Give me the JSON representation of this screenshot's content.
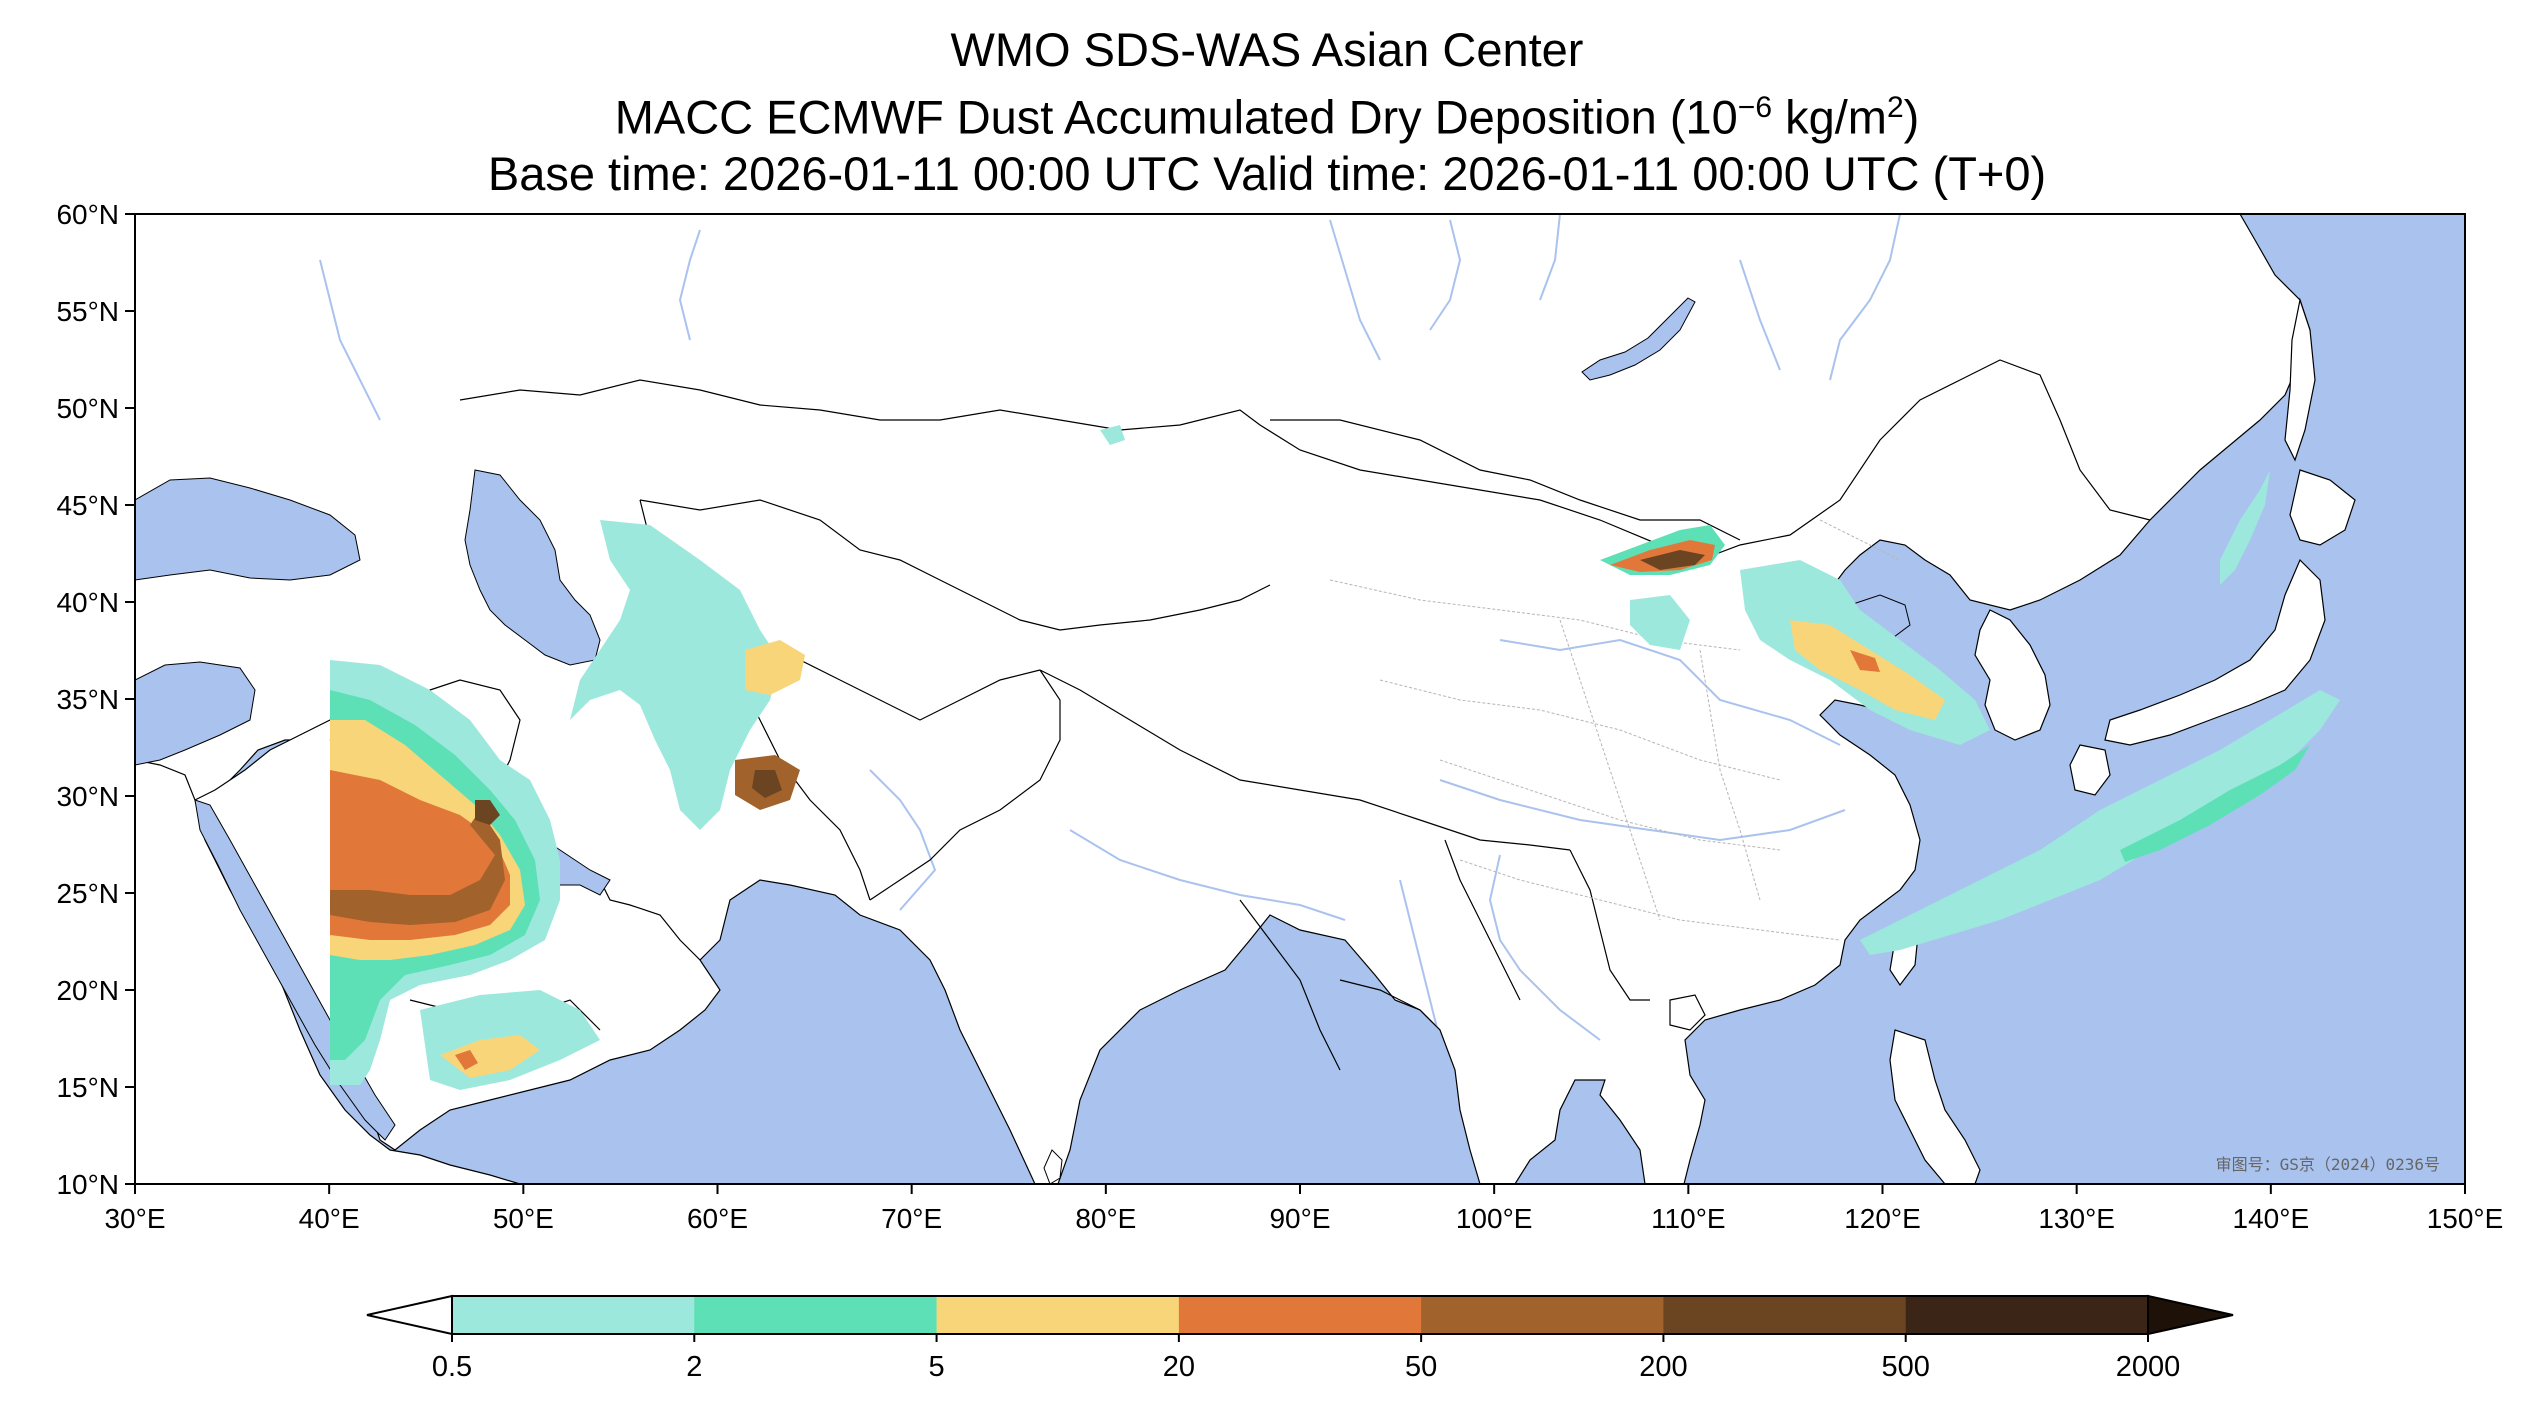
{
  "title": {
    "line1": "WMO SDS-WAS Asian Center",
    "line2_text": "MACC ECMWF Dust Accumulated Dry Deposition (10",
    "line2_exp": "−6",
    "line2_unit": " kg/m",
    "line2_unit_exp": "2",
    "line2_close": ")",
    "line3": "Base time: 2026-01-11 00:00 UTC Valid time: 2026-01-11 00:00 UTC (T+0)"
  },
  "map": {
    "lon_range": [
      30,
      150
    ],
    "lat_range": [
      10,
      60
    ],
    "lon_ticks": [
      "30°E",
      "40°E",
      "50°E",
      "60°E",
      "70°E",
      "80°E",
      "90°E",
      "100°E",
      "110°E",
      "120°E",
      "130°E",
      "140°E",
      "150°E"
    ],
    "lat_ticks": [
      "60°N",
      "55°N",
      "50°N",
      "45°N",
      "40°N",
      "35°N",
      "30°N",
      "25°N",
      "20°N",
      "15°N",
      "10°N"
    ],
    "approval_number": "审图号：GS京（2024）0236号",
    "colors": {
      "ocean": "#a9c3ee",
      "land": "#ffffff",
      "border": "#000000",
      "river": "#a9c3ee",
      "province": "#b0b0b0"
    }
  },
  "colorbar": {
    "levels": [
      "0.5",
      "2",
      "5",
      "20",
      "50",
      "200",
      "500",
      "2000"
    ],
    "colors": [
      "#9de8dc",
      "#5ee0b6",
      "#f9d57a",
      "#e1783a",
      "#a2622c",
      "#6b4422",
      "#3a2516"
    ]
  }
}
